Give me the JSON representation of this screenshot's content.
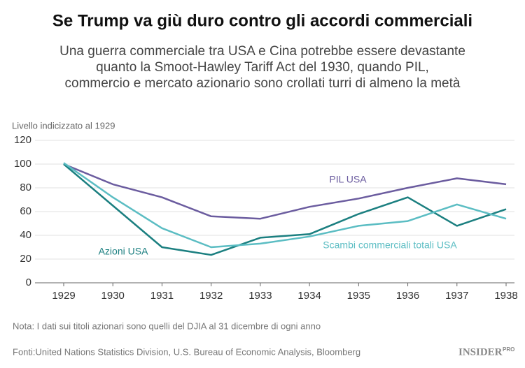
{
  "chart_data": {
    "type": "line",
    "title": "Se Trump va giù duro contro gli accordi commerciali",
    "subtitle": [
      "Una guerra commerciale tra USA e Cina potrebbe essere devastante",
      "quanto la Smoot-Hawley Tariff Act del 1930, quando PIL,",
      "commercio e mercato azionario sono crollati turri di almeno la metà"
    ],
    "y_axis_label": "Livello indicizzato al 1929",
    "x": [
      1929,
      1930,
      1931,
      1932,
      1933,
      1934,
      1935,
      1936,
      1937,
      1938
    ],
    "xlim": [
      1929,
      1938
    ],
    "xticks": [
      1929,
      1930,
      1931,
      1932,
      1933,
      1934,
      1935,
      1936,
      1937,
      1938
    ],
    "ylim": [
      0,
      120
    ],
    "yticks": [
      0,
      20,
      40,
      60,
      80,
      100,
      120
    ],
    "grid": true,
    "series": [
      {
        "name": "PIL USA",
        "color": "#6b5c9f",
        "values": [
          100,
          83,
          72,
          56,
          54,
          64,
          71,
          80,
          88,
          83
        ]
      },
      {
        "name": "Azioni USA",
        "color": "#1b7f80",
        "values": [
          100,
          65,
          30,
          23.5,
          38,
          41,
          58,
          72,
          48,
          62
        ]
      },
      {
        "name": "Scambi commerciali totali USA",
        "color": "#5bbdc3",
        "values": [
          101,
          72,
          46,
          30,
          33,
          39,
          48,
          52,
          66,
          54
        ]
      }
    ],
    "note": "Nota: I dati sui titoli azionari sono quelli del DJIA al 31 dicembre di ogni anno",
    "source": "Fonti:United Nations Statistics Division, U.S. Bureau of Economic Analysis, Bloomberg",
    "logo": "INSIDER",
    "logo_badge": "PRO"
  }
}
